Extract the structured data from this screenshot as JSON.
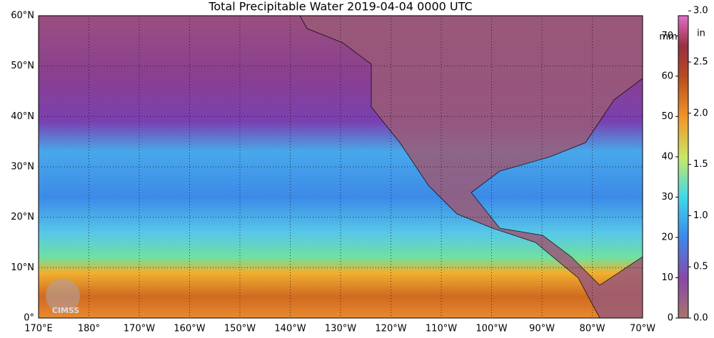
{
  "title": "Total Precipitable Water  2019-04-04 0000 UTC",
  "lat_labels": [
    "60°N",
    "50°N",
    "40°N",
    "30°N",
    "20°N",
    "10°N",
    "0°"
  ],
  "lon_labels": [
    "170°E",
    "180°",
    "170°W",
    "160°W",
    "150°W",
    "140°W",
    "130°W",
    "120°W",
    "110°W",
    "100°W",
    "90°W",
    "80°W",
    "70°W"
  ],
  "colorbar": {
    "mm_unit": "mm",
    "in_unit": "in",
    "range_mm": [
      0,
      75
    ],
    "mm_per_in": 25.4,
    "mm_ticks": [
      0,
      10,
      20,
      30,
      40,
      50,
      60,
      70
    ],
    "in_ticks": [
      {
        "value": 0,
        "label": "0.0"
      },
      {
        "value": 0.5,
        "label": "0.5"
      },
      {
        "value": 1,
        "label": "1.0"
      },
      {
        "value": 1.5,
        "label": "1.5"
      },
      {
        "value": 2,
        "label": "2.0"
      },
      {
        "value": 2.5,
        "label": "2.5"
      },
      {
        "value": 3,
        "label": "3.0"
      }
    ]
  },
  "logo": "CIMSS"
}
